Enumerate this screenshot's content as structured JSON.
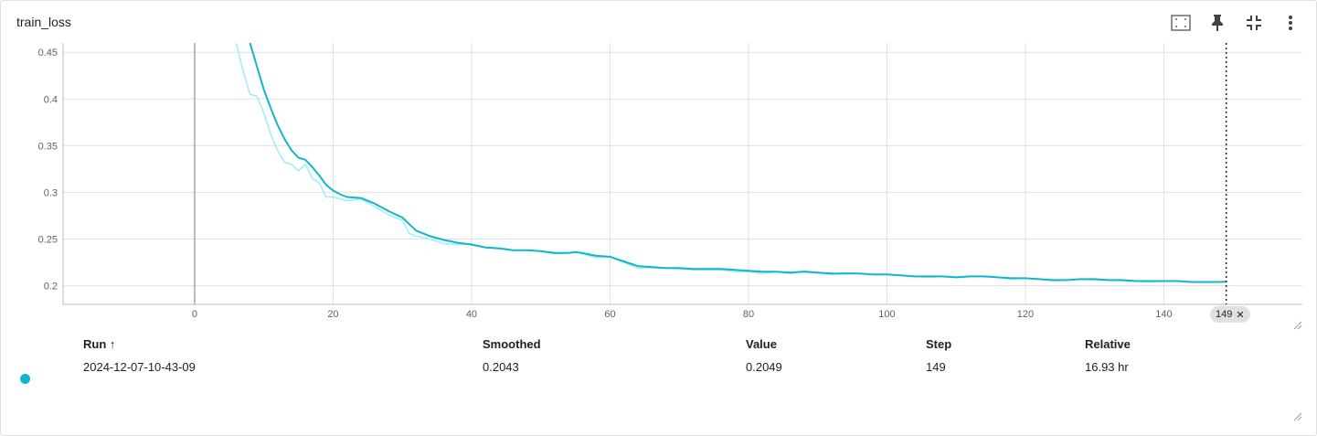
{
  "card": {
    "title": "train_loss"
  },
  "toolbar": {
    "fit_icon": "fit-to-data-icon",
    "pin_icon": "pin-icon",
    "collapse_icon": "collapse-icon",
    "more_icon": "more-vert-icon"
  },
  "colors": {
    "smoothed": "#12b5cb",
    "raw": "#a5ecf5",
    "grid": "#e0e0e0",
    "zero_axis": "#aaaaaa"
  },
  "chart_data": {
    "type": "line",
    "title": "train_loss",
    "xlabel": "",
    "ylabel": "",
    "xlim": [
      -19,
      160
    ],
    "ylim": [
      0.18,
      0.46
    ],
    "x_ticks": [
      0,
      20,
      40,
      60,
      80,
      100,
      120,
      140
    ],
    "y_ticks": [
      0.2,
      0.25,
      0.3,
      0.35,
      0.4,
      0.45
    ],
    "x_tick_labels": [
      "0",
      "20",
      "40",
      "60",
      "80",
      "100",
      "120",
      "140"
    ],
    "y_tick_labels": [
      "0.2",
      "0.25",
      "0.3",
      "0.35",
      "0.4",
      "0.45"
    ],
    "grid": true,
    "hover_step": 149,
    "series": [
      {
        "name": "",
        "role": "raw",
        "x": [
          6,
          7,
          8,
          9,
          10,
          11,
          12,
          13,
          14,
          15,
          16,
          17,
          18,
          19,
          20,
          22,
          24,
          26,
          28,
          30,
          31,
          32,
          34,
          36,
          38,
          40,
          42,
          44,
          46,
          48,
          50,
          52,
          54,
          55,
          56,
          58,
          60,
          62,
          64,
          66,
          68,
          70,
          72,
          74,
          76,
          78,
          80,
          82,
          84,
          86,
          88,
          90,
          92,
          94,
          96,
          98,
          100,
          102,
          104,
          106,
          108,
          110,
          112,
          114,
          116,
          118,
          120,
          122,
          124,
          126,
          128,
          130,
          132,
          134,
          136,
          138,
          140,
          142,
          144,
          146,
          148,
          149
        ],
        "y": [
          0.46,
          0.43,
          0.405,
          0.403,
          0.385,
          0.362,
          0.345,
          0.332,
          0.33,
          0.323,
          0.33,
          0.315,
          0.31,
          0.295,
          0.295,
          0.291,
          0.293,
          0.285,
          0.276,
          0.27,
          0.256,
          0.253,
          0.25,
          0.245,
          0.244,
          0.245,
          0.241,
          0.24,
          0.238,
          0.238,
          0.237,
          0.234,
          0.235,
          0.236,
          0.234,
          0.23,
          0.231,
          0.225,
          0.219,
          0.219,
          0.219,
          0.218,
          0.217,
          0.217,
          0.217,
          0.215,
          0.215,
          0.213,
          0.215,
          0.213,
          0.216,
          0.214,
          0.212,
          0.214,
          0.213,
          0.212,
          0.212,
          0.211,
          0.21,
          0.209,
          0.21,
          0.209,
          0.21,
          0.21,
          0.209,
          0.207,
          0.208,
          0.207,
          0.205,
          0.206,
          0.207,
          0.206,
          0.206,
          0.205,
          0.205,
          0.204,
          0.205,
          0.205,
          0.204,
          0.204,
          0.204,
          0.205
        ]
      },
      {
        "name": "",
        "role": "smoothed",
        "x": [
          8,
          9,
          10,
          11,
          12,
          13,
          14,
          15,
          16,
          17,
          18,
          19,
          20,
          21,
          22,
          24,
          26,
          28,
          30,
          31,
          32,
          34,
          36,
          38,
          40,
          42,
          44,
          46,
          48,
          50,
          52,
          54,
          55,
          56,
          58,
          60,
          62,
          64,
          66,
          68,
          70,
          72,
          74,
          76,
          78,
          80,
          82,
          84,
          86,
          88,
          90,
          92,
          94,
          96,
          98,
          100,
          102,
          104,
          106,
          108,
          110,
          112,
          114,
          116,
          118,
          120,
          122,
          124,
          126,
          128,
          130,
          132,
          134,
          136,
          138,
          140,
          142,
          144,
          146,
          148,
          149
        ],
        "y": [
          0.46,
          0.435,
          0.41,
          0.39,
          0.372,
          0.357,
          0.345,
          0.337,
          0.335,
          0.327,
          0.318,
          0.308,
          0.302,
          0.298,
          0.295,
          0.294,
          0.288,
          0.28,
          0.273,
          0.266,
          0.259,
          0.253,
          0.249,
          0.246,
          0.244,
          0.241,
          0.24,
          0.238,
          0.238,
          0.237,
          0.235,
          0.235,
          0.236,
          0.235,
          0.232,
          0.231,
          0.226,
          0.221,
          0.22,
          0.219,
          0.219,
          0.218,
          0.218,
          0.218,
          0.217,
          0.216,
          0.215,
          0.215,
          0.214,
          0.215,
          0.214,
          0.213,
          0.213,
          0.213,
          0.212,
          0.212,
          0.211,
          0.21,
          0.21,
          0.21,
          0.209,
          0.21,
          0.21,
          0.209,
          0.208,
          0.208,
          0.207,
          0.206,
          0.206,
          0.207,
          0.207,
          0.206,
          0.206,
          0.205,
          0.205,
          0.205,
          0.205,
          0.204,
          0.204,
          0.204,
          0.2043
        ]
      }
    ]
  },
  "hover_chip": {
    "label": "149",
    "close": "✕"
  },
  "table": {
    "headers": {
      "run": "Run ↑",
      "smoothed": "Smoothed",
      "value": "Value",
      "step": "Step",
      "relative": "Relative"
    },
    "rows": [
      {
        "run": "2024-12-07-10-43-09",
        "smoothed": "0.2043",
        "value": "0.2049",
        "step": "149",
        "relative": "16.93 hr",
        "color": "#12b5cb"
      }
    ]
  }
}
